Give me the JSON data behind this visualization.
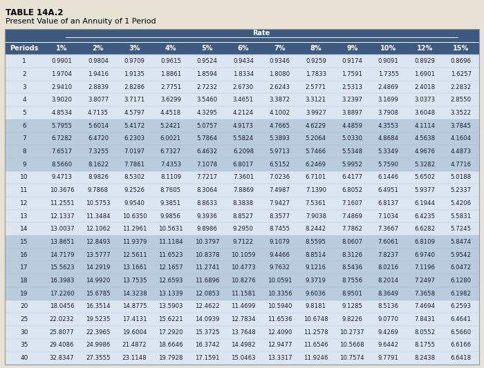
{
  "title1": "TABLE 14A.2",
  "title2": "Present Value of an Annuity of 1 Period",
  "rate_label": "Rate",
  "col_headers": [
    "Periods",
    "1%",
    "2%",
    "3%",
    "4%",
    "5%",
    "6%",
    "7%",
    "8%",
    "9%",
    "10%",
    "12%",
    "15%"
  ],
  "rows": [
    [
      1,
      0.9901,
      0.9804,
      0.9709,
      0.9615,
      0.9524,
      0.9434,
      0.9346,
      0.9259,
      0.9174,
      0.9091,
      0.8929,
      0.8696
    ],
    [
      2,
      1.9704,
      1.9416,
      1.9135,
      1.8861,
      1.8594,
      1.8334,
      1.808,
      1.7833,
      1.7591,
      1.7355,
      1.6901,
      1.6257
    ],
    [
      3,
      2.941,
      2.8839,
      2.8286,
      2.7751,
      2.7232,
      2.673,
      2.6243,
      2.5771,
      2.5313,
      2.4869,
      2.4018,
      2.2832
    ],
    [
      4,
      3.902,
      3.8077,
      3.7171,
      3.6299,
      3.546,
      3.4651,
      3.3872,
      3.3121,
      3.2397,
      3.1699,
      3.0373,
      2.855
    ],
    [
      5,
      4.8534,
      4.7135,
      4.5797,
      4.4518,
      4.3295,
      4.2124,
      4.1002,
      3.9927,
      3.8897,
      3.7908,
      3.6048,
      3.3522
    ],
    [
      6,
      5.7955,
      5.6014,
      5.4172,
      5.2421,
      5.0757,
      4.9173,
      4.7665,
      4.6229,
      4.4859,
      4.3553,
      4.1114,
      3.7845
    ],
    [
      7,
      6.7282,
      6.472,
      6.2303,
      6.0021,
      5.7864,
      5.5824,
      5.3893,
      5.2064,
      5.033,
      4.8684,
      4.5638,
      4.1604
    ],
    [
      8,
      7.6517,
      7.3255,
      7.0197,
      6.7327,
      6.4632,
      6.2098,
      5.9713,
      5.7466,
      5.5348,
      5.3349,
      4.9676,
      4.4873
    ],
    [
      9,
      8.566,
      8.1622,
      7.7861,
      7.4353,
      7.1078,
      6.8017,
      6.5152,
      6.2469,
      5.9952,
      5.759,
      5.3282,
      4.7716
    ],
    [
      10,
      9.4713,
      8.9826,
      8.5302,
      8.1109,
      7.7217,
      7.3601,
      7.0236,
      6.7101,
      6.4177,
      6.1446,
      5.6502,
      5.0188
    ],
    [
      11,
      10.3676,
      9.7868,
      9.2526,
      8.7605,
      8.3064,
      7.8869,
      7.4987,
      7.139,
      6.8052,
      6.4951,
      5.9377,
      5.2337
    ],
    [
      12,
      11.2551,
      10.5753,
      9.954,
      9.3851,
      8.8633,
      8.3838,
      7.9427,
      7.5361,
      7.1607,
      6.8137,
      6.1944,
      5.4206
    ],
    [
      13,
      12.1337,
      11.3484,
      10.635,
      9.9856,
      9.3936,
      8.8527,
      8.3577,
      7.9038,
      7.4869,
      7.1034,
      6.4235,
      5.5831
    ],
    [
      14,
      13.0037,
      12.1062,
      11.2961,
      10.5631,
      9.8986,
      9.295,
      8.7455,
      8.2442,
      7.7862,
      7.3667,
      6.6282,
      5.7245
    ],
    [
      15,
      13.8651,
      12.8493,
      11.9379,
      11.1184,
      10.3797,
      9.7122,
      9.1079,
      8.5595,
      8.0607,
      7.6061,
      6.8109,
      5.8474
    ],
    [
      16,
      14.7179,
      13.5777,
      12.5611,
      11.6523,
      10.8378,
      10.1059,
      9.4466,
      8.8514,
      8.3126,
      7.8237,
      6.974,
      5.9542
    ],
    [
      17,
      15.5623,
      14.2919,
      13.1661,
      12.1657,
      11.2741,
      10.4773,
      9.7632,
      9.1216,
      8.5436,
      8.0216,
      7.1196,
      6.0472
    ],
    [
      18,
      16.3983,
      14.992,
      13.7535,
      12.6593,
      11.6896,
      10.8276,
      10.0591,
      9.3719,
      8.7556,
      8.2014,
      7.2497,
      6.128
    ],
    [
      19,
      17.226,
      15.6785,
      14.3238,
      13.1339,
      12.0853,
      11.1581,
      10.3356,
      9.6036,
      8.9501,
      8.3649,
      7.3658,
      6.1982
    ],
    [
      20,
      18.0456,
      16.3514,
      14.8775,
      13.5903,
      12.4622,
      11.4699,
      10.594,
      9.8181,
      9.1285,
      8.5136,
      7.4694,
      6.2593
    ],
    [
      25,
      22.0232,
      19.5235,
      17.4131,
      15.6221,
      14.0939,
      12.7834,
      11.6536,
      10.6748,
      9.8226,
      9.077,
      7.8431,
      6.4641
    ],
    [
      30,
      25.8077,
      22.3965,
      19.6004,
      17.292,
      15.3725,
      13.7648,
      12.409,
      11.2578,
      10.2737,
      9.4269,
      8.0552,
      6.566
    ],
    [
      35,
      29.4086,
      24.9986,
      21.4872,
      18.6646,
      16.3742,
      14.4982,
      12.9477,
      11.6546,
      10.5668,
      9.6442,
      8.1755,
      6.6166
    ],
    [
      40,
      32.8347,
      27.3555,
      23.1148,
      19.7928,
      17.1591,
      15.0463,
      13.3317,
      11.9246,
      10.7574,
      9.7791,
      8.2438,
      6.6418
    ]
  ],
  "header_bg": "#3d5980",
  "header_text": "#ffffff",
  "light_row_bg": "#dce6f1",
  "dark_row_bg": "#b8ccdd",
  "separator_row_bg": "#c5d8ea",
  "text_color": "#1a1a2e",
  "title_color": "#000000",
  "bg_color": "#e8e2d5",
  "row_groups": [
    [
      0,
      1,
      2,
      3,
      4
    ],
    [
      5,
      6,
      7,
      8
    ],
    [
      9,
      10,
      11,
      12,
      13
    ],
    [
      14,
      15,
      16,
      17,
      18
    ],
    [
      19,
      20,
      21,
      22,
      23
    ]
  ],
  "group_colors": [
    "#dce6f1",
    "#c8d8e8",
    "#dce6f1",
    "#c8d8e8",
    "#dce6f1"
  ]
}
